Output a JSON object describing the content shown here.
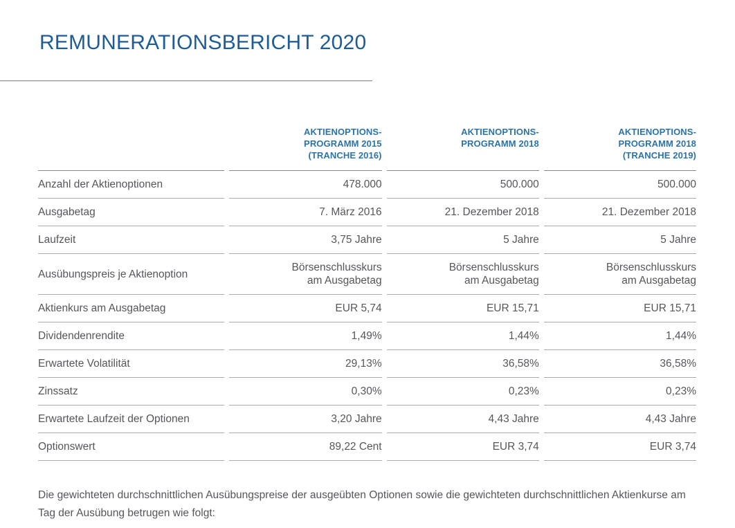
{
  "page": {
    "title": "REMUNERATIONSBERICHT 2020"
  },
  "colors": {
    "title_blue": "#1e5c95",
    "header_blue": "#2c73a8",
    "body_gray": "#55565b",
    "rule_gray": "#9a9a9c"
  },
  "table": {
    "columns": [
      "AKTIENOPTIONS-\nPROGRAMM 2015\n(TRANCHE 2016)",
      "AKTIENOPTIONS-\nPROGRAMM 2018",
      "AKTIENOPTIONS-\nPROGRAMM 2018\n(TRANCHE 2019)"
    ],
    "rows": [
      {
        "label": "Anzahl der Aktienoptionen",
        "values": [
          "478.000",
          "500.000",
          "500.000"
        ]
      },
      {
        "label": "Ausgabetag",
        "values": [
          "7. März 2016",
          "21. Dezember 2018",
          "21. Dezember 2018"
        ]
      },
      {
        "label": "Laufzeit",
        "values": [
          "3,75 Jahre",
          "5 Jahre",
          "5 Jahre"
        ]
      },
      {
        "label": "Ausübungspreis je Aktienoption",
        "values": [
          "Börsenschlusskurs\nam Ausgabetag",
          "Börsenschlusskurs\nam Ausgabetag",
          "Börsenschlusskurs\nam Ausgabetag"
        ]
      },
      {
        "label": "Aktienkurs am Ausgabetag",
        "values": [
          "EUR 5,74",
          "EUR 15,71",
          "EUR 15,71"
        ]
      },
      {
        "label": "Dividendenrendite",
        "values": [
          "1,49%",
          "1,44%",
          "1,44%"
        ]
      },
      {
        "label": "Erwartete Volatilität",
        "values": [
          "29,13%",
          "36,58%",
          "36,58%"
        ]
      },
      {
        "label": "Zinssatz",
        "values": [
          "0,30%",
          "0,23%",
          "0,23%"
        ]
      },
      {
        "label": "Erwartete Laufzeit der Optionen",
        "values": [
          "3,20 Jahre",
          "4,43 Jahre",
          "4,43 Jahre"
        ]
      },
      {
        "label": "Optionswert",
        "values": [
          "89,22 Cent",
          "EUR 3,74",
          "EUR 3,74"
        ]
      }
    ]
  },
  "footer": {
    "text": "Die gewichteten durchschnittlichen Ausübungspreise der ausgeübten Optionen sowie die gewichteten durchschnittlichen Aktienkurse am Tag der Ausübung betrugen wie folgt:"
  }
}
